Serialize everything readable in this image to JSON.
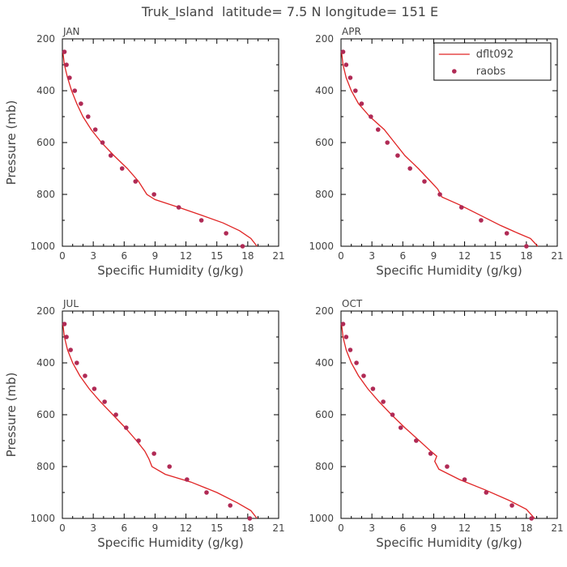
{
  "figure": {
    "title": "Truk_Island  latitude= 7.5 N longitude= 151 E"
  },
  "colors": {
    "model_line": "#e02424",
    "obs_marker": "#b02a55",
    "axis": "#000000",
    "text": "#444444"
  },
  "legend": {
    "panel": "APR",
    "placement": "top-right",
    "items": [
      {
        "label": "dflt092",
        "kind": "line"
      },
      {
        "label": "raobs",
        "kind": "marker"
      }
    ]
  },
  "chart_data": [
    {
      "type": "line",
      "panel_label": "JAN",
      "xlabel": "Specific Humidity (g/kg)",
      "ylabel": "Pressure (mb)",
      "xlim": [
        0,
        21
      ],
      "ylim": [
        1000,
        200
      ],
      "xticks": [
        "0",
        "3",
        "6",
        "9",
        "12",
        "15",
        "18",
        "21"
      ],
      "yticks": [
        "200",
        "400",
        "600",
        "800",
        "1000"
      ],
      "series": [
        {
          "name": "dflt092",
          "style": "line",
          "x": [
            0.05,
            0.2,
            0.5,
            0.9,
            1.4,
            2.0,
            2.8,
            3.8,
            5.0,
            6.3,
            7.4,
            8.2,
            9.0,
            11.3,
            13.5,
            15.6,
            17.2,
            18.3,
            18.9
          ],
          "y": [
            250,
            300,
            350,
            400,
            450,
            500,
            550,
            600,
            650,
            700,
            750,
            800,
            820,
            850,
            880,
            910,
            940,
            970,
            1000
          ]
        },
        {
          "name": "raobs",
          "style": "marker",
          "x": [
            0.2,
            0.4,
            0.7,
            1.2,
            1.8,
            2.5,
            3.2,
            3.9,
            4.7,
            5.8,
            7.1,
            8.9,
            11.3,
            13.5,
            15.9,
            17.5
          ],
          "y": [
            250,
            300,
            350,
            400,
            450,
            500,
            550,
            600,
            650,
            700,
            750,
            800,
            850,
            900,
            950,
            1000
          ]
        }
      ]
    },
    {
      "type": "line",
      "panel_label": "APR",
      "xlabel": "Specific Humidity (g/kg)",
      "ylabel": "",
      "xlim": [
        0,
        21
      ],
      "ylim": [
        1000,
        200
      ],
      "xticks": [
        "0",
        "3",
        "6",
        "9",
        "12",
        "15",
        "18",
        "21"
      ],
      "yticks": [
        "200",
        "400",
        "600",
        "800",
        "1000"
      ],
      "series": [
        {
          "name": "dflt092",
          "style": "line",
          "x": [
            0.05,
            0.2,
            0.5,
            1.0,
            1.7,
            2.8,
            4.2,
            5.2,
            6.2,
            7.5,
            8.7,
            9.4,
            9.8,
            11.5,
            13.5,
            15.5,
            17.2,
            18.4,
            19.1
          ],
          "y": [
            250,
            300,
            350,
            400,
            450,
            500,
            550,
            600,
            650,
            700,
            750,
            780,
            810,
            840,
            880,
            920,
            950,
            970,
            1000
          ]
        },
        {
          "name": "raobs",
          "style": "marker",
          "x": [
            0.2,
            0.5,
            0.9,
            1.4,
            2.0,
            2.9,
            3.6,
            4.5,
            5.5,
            6.7,
            8.1,
            9.6,
            11.7,
            13.6,
            16.1,
            18.0
          ],
          "y": [
            250,
            300,
            350,
            400,
            450,
            500,
            550,
            600,
            650,
            700,
            750,
            800,
            850,
            900,
            950,
            1000
          ]
        }
      ]
    },
    {
      "type": "line",
      "panel_label": "JUL",
      "xlabel": "Specific Humidity (g/kg)",
      "ylabel": "Pressure (mb)",
      "xlim": [
        0,
        21
      ],
      "ylim": [
        1000,
        200
      ],
      "xticks": [
        "0",
        "3",
        "6",
        "9",
        "12",
        "15",
        "18",
        "21"
      ],
      "yticks": [
        "200",
        "400",
        "600",
        "800",
        "1000"
      ],
      "series": [
        {
          "name": "dflt092",
          "style": "line",
          "x": [
            0.05,
            0.2,
            0.5,
            1.0,
            1.7,
            2.6,
            3.7,
            4.9,
            6.1,
            7.2,
            8.0,
            8.4,
            8.7,
            10.0,
            12.5,
            15.0,
            17.0,
            18.3,
            18.9
          ],
          "y": [
            250,
            300,
            350,
            400,
            450,
            500,
            550,
            600,
            650,
            700,
            740,
            770,
            800,
            830,
            860,
            900,
            940,
            970,
            1000
          ]
        },
        {
          "name": "raobs",
          "style": "marker",
          "x": [
            0.2,
            0.4,
            0.8,
            1.4,
            2.2,
            3.1,
            4.1,
            5.2,
            6.2,
            7.4,
            8.9,
            10.4,
            12.1,
            14.0,
            16.3,
            18.2
          ],
          "y": [
            250,
            300,
            350,
            400,
            450,
            500,
            550,
            600,
            650,
            700,
            750,
            800,
            850,
            900,
            950,
            1000
          ]
        }
      ]
    },
    {
      "type": "line",
      "panel_label": "OCT",
      "xlabel": "Specific Humidity (g/kg)",
      "ylabel": "",
      "xlim": [
        0,
        21
      ],
      "ylim": [
        1000,
        200
      ],
      "xticks": [
        "0",
        "3",
        "6",
        "9",
        "12",
        "15",
        "18",
        "21"
      ],
      "yticks": [
        "200",
        "400",
        "600",
        "800",
        "1000"
      ],
      "series": [
        {
          "name": "dflt092",
          "style": "line",
          "x": [
            0.05,
            0.2,
            0.5,
            1.0,
            1.7,
            2.6,
            3.7,
            4.9,
            6.2,
            7.6,
            8.7,
            9.3,
            9.1,
            9.5,
            11.5,
            14.0,
            16.3,
            18.0,
            18.8
          ],
          "y": [
            250,
            300,
            350,
            400,
            450,
            500,
            550,
            600,
            650,
            700,
            740,
            760,
            780,
            810,
            850,
            890,
            930,
            965,
            1000
          ]
        },
        {
          "name": "raobs",
          "style": "marker",
          "x": [
            0.2,
            0.5,
            0.9,
            1.5,
            2.2,
            3.1,
            4.1,
            5.0,
            5.8,
            7.3,
            8.7,
            10.3,
            12.0,
            14.1,
            16.6,
            18.5
          ],
          "y": [
            250,
            300,
            350,
            400,
            450,
            500,
            550,
            600,
            650,
            700,
            750,
            800,
            850,
            900,
            950,
            1000
          ]
        }
      ]
    }
  ]
}
